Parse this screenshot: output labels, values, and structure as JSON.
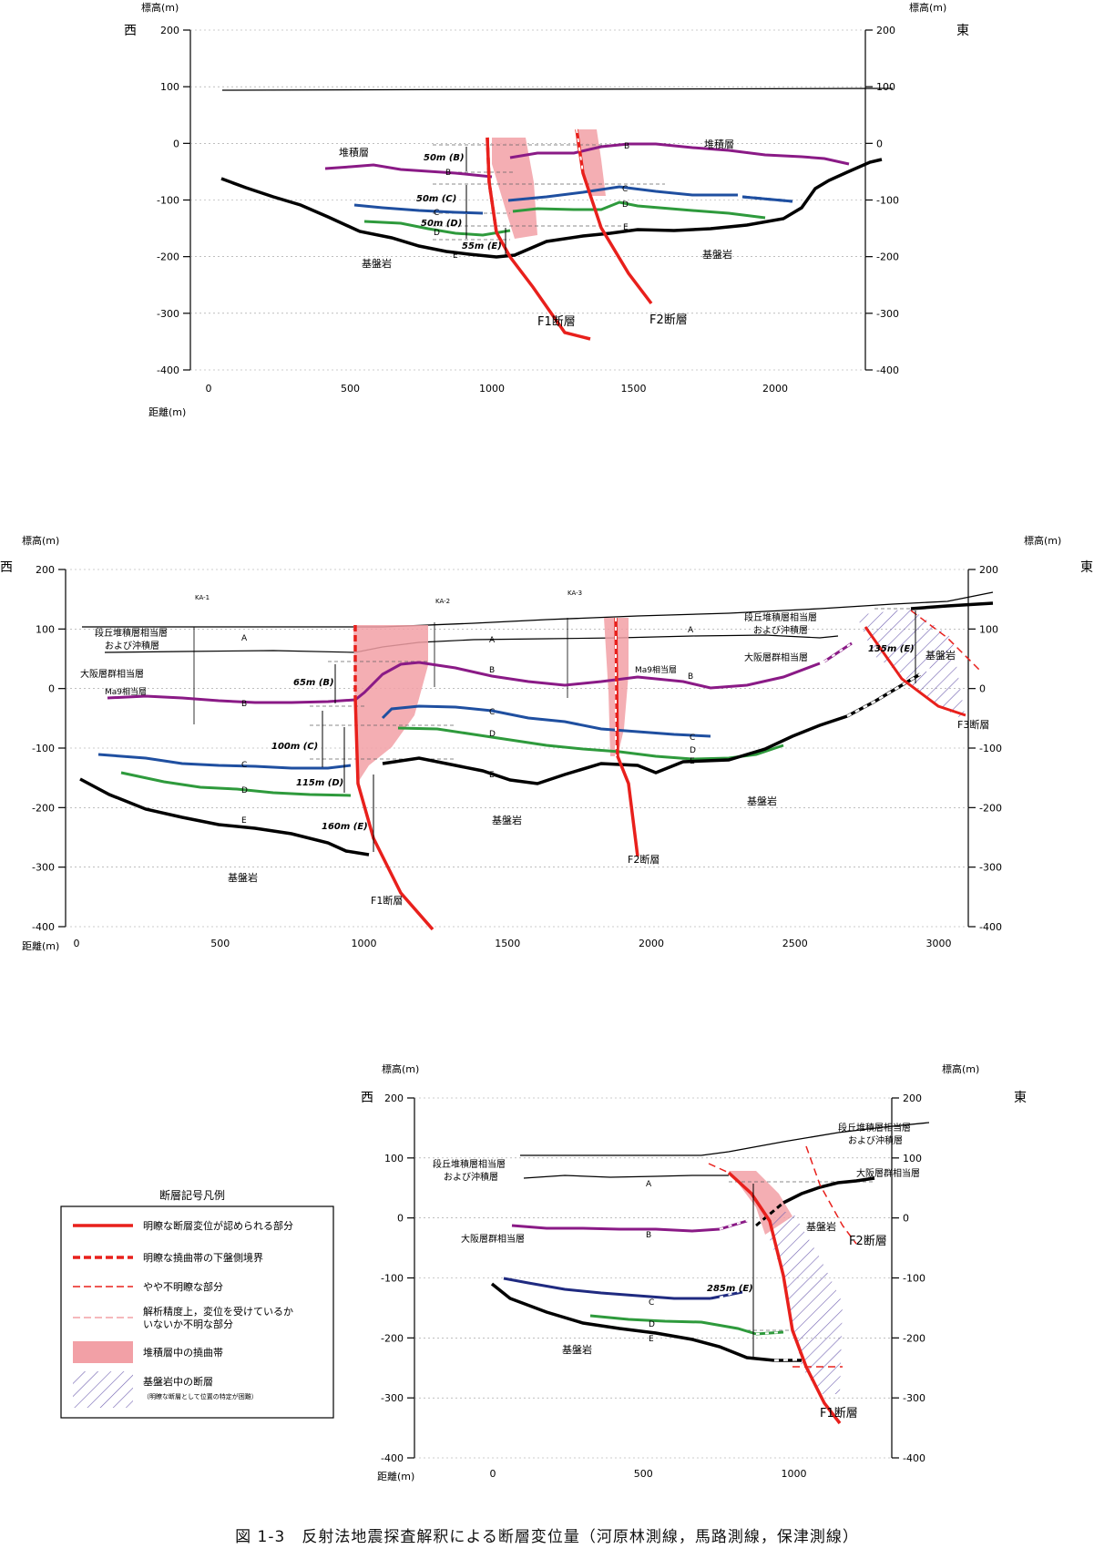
{
  "caption": "図 1-3　反射法地震探査解釈による断層変位量（河原林測線，馬路測線，保津測線）",
  "panels": [
    {
      "id": "p1",
      "x_ticks": [
        0,
        500,
        1000,
        1500,
        2000
      ],
      "y_ticks": [
        200,
        100,
        0,
        -100,
        -200,
        -300,
        -400
      ],
      "axis_label_x": "距離(m)",
      "axis_label_y": "標高(m)",
      "west": "西",
      "east": "東",
      "notes": {
        "deposit_w": "堆積層",
        "deposit_e": "堆積層",
        "bedrock_w": "基盤岩",
        "bedrock_e": "基盤岩",
        "f1": "F1断層",
        "f2": "F2断層",
        "d_b": "50m (B)",
        "d_c": "50m (C)",
        "d_d": "50m (D)",
        "d_e": "55m (E)",
        "h_b": "B",
        "h_c": "C",
        "h_d": "D",
        "h_e": "E"
      }
    },
    {
      "id": "p2",
      "x_ticks": [
        0,
        500,
        1000,
        1500,
        2000,
        2500,
        3000
      ],
      "y_ticks": [
        200,
        100,
        0,
        -100,
        -200,
        -300,
        -400
      ],
      "axis_label_x": "距離(m)",
      "axis_label_y": "標高(m)",
      "west": "西",
      "east": "東",
      "notes": {
        "terrace_w": "段丘堆積層相当層",
        "terrace_w2": "および沖積層",
        "terrace_e": "段丘堆積層相当層",
        "terrace_e2": "および沖積層",
        "osaka_w": "大阪層群相当層",
        "osaka_e": "大阪層群相当層",
        "ma9_w": "Ma9相当層",
        "ma9_e": "Ma9相当層",
        "bedrock_w": "基盤岩",
        "bedrock_c": "基盤岩",
        "bedrock_e": "基盤岩",
        "f1": "F1断層",
        "f2": "F2断層",
        "f3": "F3断層",
        "d_b": "65m (B)",
        "d_c": "100m (C)",
        "d_d": "115m (D)",
        "d_e": "160m (E)",
        "d_e3": "135m (E)",
        "ka1": "KA-1",
        "ka2": "KA-2",
        "ka3": "KA-3",
        "h_a": "A",
        "h_b": "B",
        "h_c": "C",
        "h_d": "D",
        "h_e": "E"
      }
    },
    {
      "id": "p3",
      "x_ticks": [
        0,
        500,
        1000
      ],
      "y_ticks": [
        200,
        100,
        0,
        -100,
        -200,
        -300,
        -400
      ],
      "axis_label_x": "距離(m)",
      "axis_label_y": "標高(m)",
      "west": "西",
      "east": "東",
      "notes": {
        "terrace_w": "段丘堆積層相当層",
        "terrace_w2": "および沖積層",
        "terrace_e": "段丘堆積層相当層",
        "terrace_e2": "および沖積層",
        "osaka_w": "大阪層群相当層",
        "osaka_e": "大阪層群相当層",
        "bedrock_w": "基盤岩",
        "bedrock_e": "基盤岩",
        "f1": "F1断層",
        "f2": "F2断層",
        "d_e": "285m (E)",
        "h_a": "A",
        "h_b": "B",
        "h_c": "C",
        "h_d": "D",
        "h_e": "E"
      }
    }
  ],
  "legend": {
    "title": "断層記号凡例",
    "items": [
      "明瞭な断層変位が認められる部分",
      "明瞭な撓曲帯の下盤側境界",
      "やや不明瞭な部分",
      "解析精度上，変位を受けているか",
      "いないか不明な部分",
      "堆積層中の撓曲帯",
      "基盤岩中の断層",
      "（明瞭な断層として位置の特定が困難）"
    ]
  },
  "colors": {
    "fault": "#e8201c",
    "flexure": "#f2a0a6",
    "B": "#8a1a86",
    "C": "#1f4fa0",
    "D": "#2e9a3c",
    "E": "#000000",
    "hatch": "#7060b0"
  }
}
